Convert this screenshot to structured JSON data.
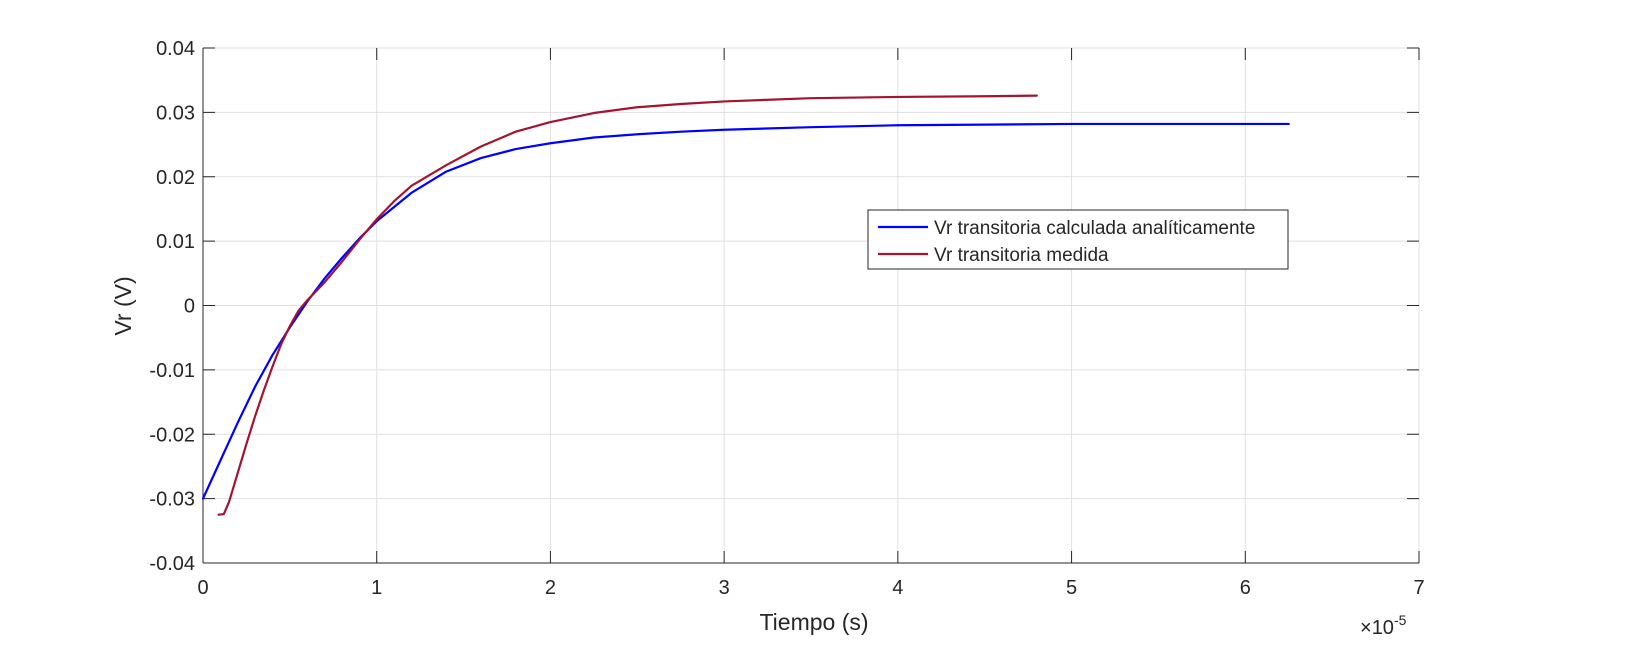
{
  "chart_data": {
    "type": "line",
    "title": "",
    "xlabel": "Tiempo (s)",
    "ylabel": "Vr (V)",
    "x_exponent_base": "10",
    "x_exponent_power": "-5",
    "x_exponent_prefix": "×",
    "xlim": [
      0,
      7
    ],
    "ylim": [
      -0.04,
      0.04
    ],
    "xticks": [
      0,
      1,
      2,
      3,
      4,
      5,
      6,
      7
    ],
    "xtick_labels": [
      "0",
      "1",
      "2",
      "3",
      "4",
      "5",
      "6",
      "7"
    ],
    "yticks": [
      -0.04,
      -0.03,
      -0.02,
      -0.01,
      0,
      0.01,
      0.02,
      0.03,
      0.04
    ],
    "ytick_labels": [
      "-0.04",
      "-0.03",
      "-0.02",
      "-0.01",
      "0",
      "0.01",
      "0.02",
      "0.03",
      "0.04"
    ],
    "grid": true,
    "legend_position": "center-right",
    "series": [
      {
        "name": "Vr transitoria calculada analíticamente",
        "color": "#0000ff",
        "x": [
          0,
          0.1,
          0.2,
          0.3,
          0.4,
          0.5,
          0.6,
          0.7,
          0.8,
          0.9,
          1.0,
          1.2,
          1.4,
          1.6,
          1.8,
          2.0,
          2.25,
          2.5,
          2.75,
          3.0,
          3.5,
          4.0,
          4.5,
          5.0,
          5.5,
          6.0,
          6.25
        ],
        "y": [
          -0.03,
          -0.0241,
          -0.0182,
          -0.0126,
          -0.0077,
          -0.0034,
          0.0006,
          0.0042,
          0.0074,
          0.0104,
          0.0131,
          0.0175,
          0.0208,
          0.0229,
          0.0243,
          0.0252,
          0.0261,
          0.0266,
          0.027,
          0.0273,
          0.0277,
          0.028,
          0.0281,
          0.0282,
          0.0282,
          0.0282,
          0.0282
        ]
      },
      {
        "name": "Vr transitoria medida",
        "color": "#a2142f",
        "x": [
          0.09,
          0.12,
          0.15,
          0.2,
          0.25,
          0.3,
          0.35,
          0.4,
          0.45,
          0.5,
          0.55,
          0.6,
          0.7,
          0.8,
          0.9,
          1.0,
          1.1,
          1.2,
          1.4,
          1.6,
          1.8,
          2.0,
          2.25,
          2.5,
          2.75,
          3.0,
          3.5,
          4.0,
          4.5,
          4.8
        ],
        "y": [
          -0.0325,
          -0.0324,
          -0.0305,
          -0.026,
          -0.0215,
          -0.0172,
          -0.0132,
          -0.0095,
          -0.006,
          -0.0032,
          -0.0008,
          0.0008,
          0.0036,
          0.0068,
          0.0102,
          0.0134,
          0.0162,
          0.0186,
          0.0218,
          0.0247,
          0.027,
          0.0285,
          0.0299,
          0.0308,
          0.0313,
          0.0317,
          0.0322,
          0.0324,
          0.0325,
          0.0326
        ]
      }
    ]
  }
}
